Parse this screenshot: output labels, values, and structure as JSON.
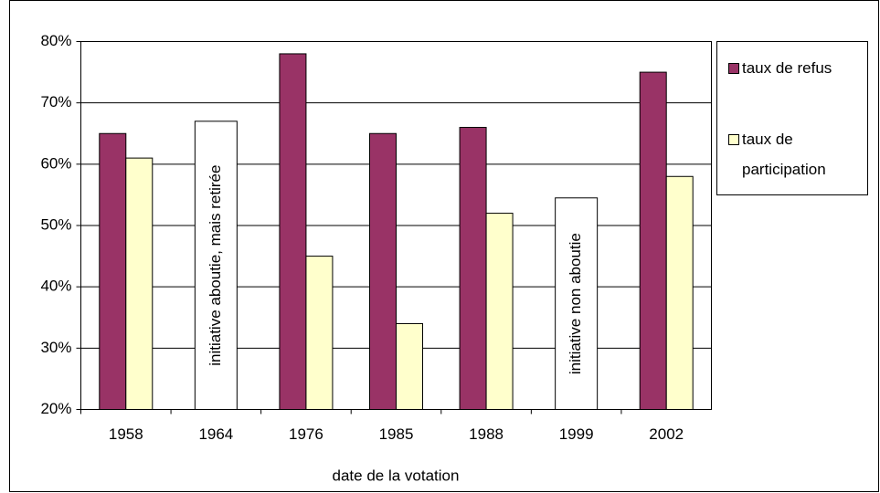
{
  "chart_data": {
    "type": "bar",
    "xlabel": "date de la votation",
    "categories": [
      "1958",
      "1964",
      "1976",
      "1985",
      "1988",
      "1999",
      "2002"
    ],
    "series": [
      {
        "name": "taux de refus",
        "color": "#993366",
        "values": [
          65,
          null,
          78,
          65,
          66,
          null,
          75
        ]
      },
      {
        "name": "taux de participation",
        "color": "#ffffcc",
        "values": [
          61,
          null,
          45,
          34,
          52,
          null,
          58
        ]
      }
    ],
    "annotations": [
      {
        "text": "initiative aboutie, mais retirée",
        "x": "1964",
        "y": 67
      },
      {
        "text": "initiative non aboutie",
        "x": "1999",
        "y": 54.5
      }
    ],
    "ylim": [
      20,
      80
    ],
    "yticks": [
      {
        "value": 20,
        "label": "20%"
      },
      {
        "value": 30,
        "label": "30%"
      },
      {
        "value": 40,
        "label": "40%"
      },
      {
        "value": 50,
        "label": "50%"
      },
      {
        "value": 60,
        "label": "60%"
      },
      {
        "value": 70,
        "label": "70%"
      },
      {
        "value": 80,
        "label": "80%"
      }
    ],
    "grid": true,
    "legend": "right"
  }
}
